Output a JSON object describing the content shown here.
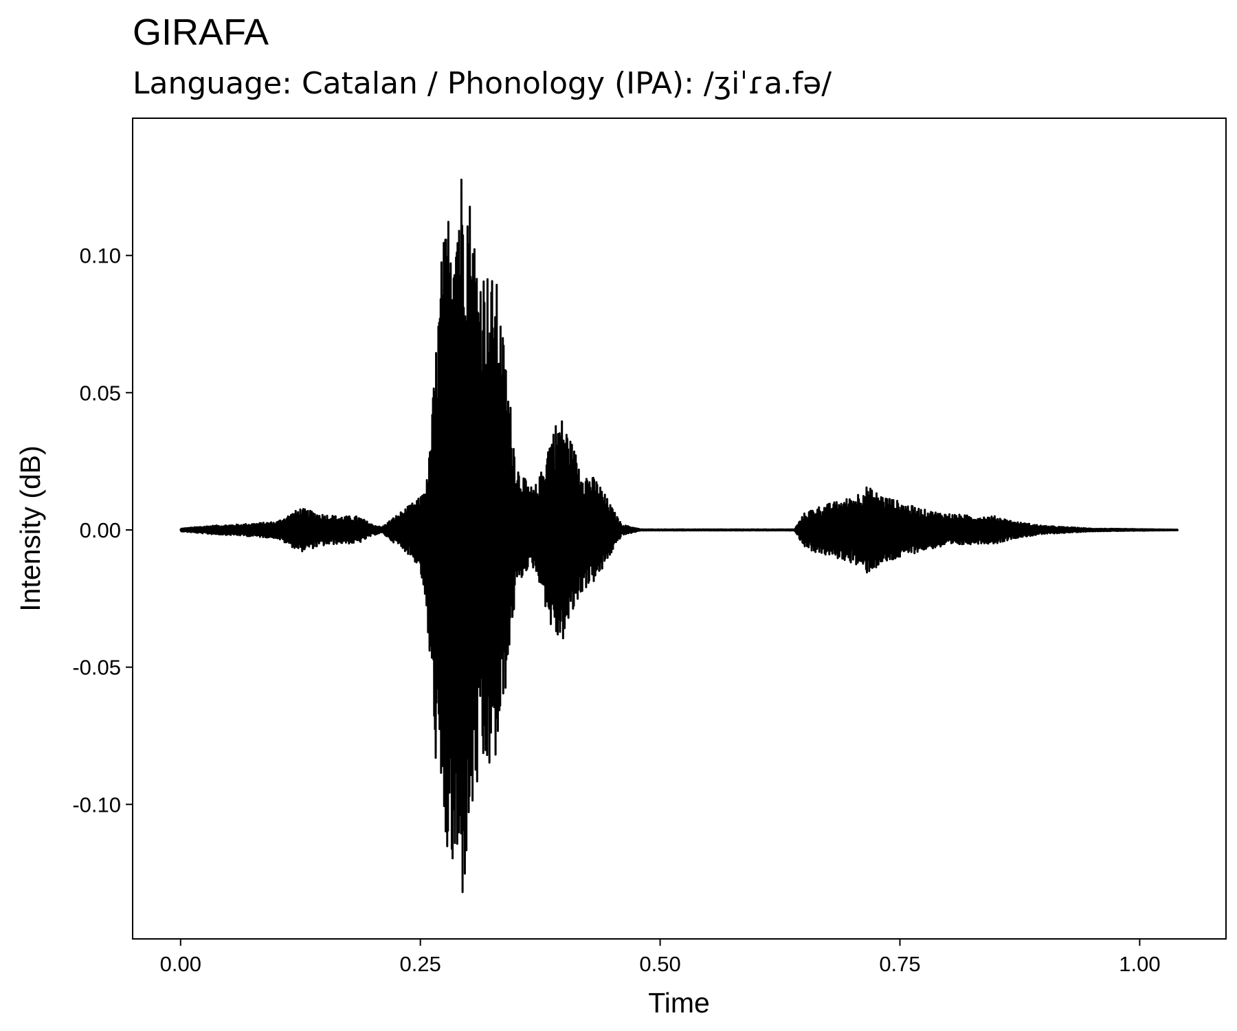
{
  "chart_data": {
    "type": "line",
    "title": "GIRAFA",
    "subtitle": "Language: Catalan / Phonology (IPA): /ʒiˈɾa.fə/",
    "xlabel": "Time",
    "ylabel": "Intensity (dB)",
    "xlim": [
      -0.05,
      1.09
    ],
    "ylim": [
      -0.149,
      0.15
    ],
    "x_ticks": [
      0.0,
      0.25,
      0.5,
      0.75,
      1.0
    ],
    "x_tick_labels": [
      "0.00",
      "0.25",
      "0.50",
      "0.75",
      "1.00"
    ],
    "y_ticks": [
      0.1,
      0.05,
      0.0,
      -0.05,
      -0.1
    ],
    "y_tick_labels": [
      "0.10",
      "0.05",
      "0.00",
      "-0.05",
      "-0.10"
    ],
    "grid": false,
    "legend": "none",
    "series": [
      {
        "color": "#000000",
        "envelope": {
          "t": [
            0.0,
            0.03,
            0.06,
            0.1,
            0.115,
            0.125,
            0.145,
            0.165,
            0.185,
            0.2,
            0.21,
            0.22,
            0.235,
            0.25,
            0.258,
            0.265,
            0.272,
            0.28,
            0.29,
            0.295,
            0.3,
            0.31,
            0.32,
            0.33,
            0.34,
            0.35,
            0.36,
            0.368,
            0.375,
            0.385,
            0.395,
            0.4,
            0.41,
            0.42,
            0.435,
            0.45,
            0.46,
            0.48,
            0.64,
            0.65,
            0.66,
            0.68,
            0.7,
            0.715,
            0.73,
            0.745,
            0.76,
            0.78,
            0.8,
            0.83,
            0.85,
            0.87,
            0.9,
            0.95,
            1.0,
            1.04
          ],
          "upper": [
            0.0005,
            0.0015,
            0.002,
            0.003,
            0.006,
            0.008,
            0.006,
            0.005,
            0.005,
            0.002,
            0.001,
            0.004,
            0.008,
            0.012,
            0.02,
            0.06,
            0.1,
            0.12,
            0.133,
            0.136,
            0.128,
            0.1,
            0.095,
            0.09,
            0.06,
            0.025,
            0.018,
            0.015,
            0.02,
            0.035,
            0.042,
            0.04,
            0.03,
            0.022,
            0.018,
            0.008,
            0.002,
            0.0002,
            0.0002,
            0.006,
            0.008,
            0.01,
            0.012,
            0.016,
            0.013,
            0.011,
            0.009,
            0.007,
            0.006,
            0.005,
            0.005,
            0.003,
            0.0015,
            0.0005,
            0.0003,
            0.0001
          ],
          "lower": [
            -0.0005,
            -0.0015,
            -0.002,
            -0.003,
            -0.006,
            -0.008,
            -0.006,
            -0.005,
            -0.005,
            -0.002,
            -0.001,
            -0.004,
            -0.008,
            -0.014,
            -0.04,
            -0.08,
            -0.11,
            -0.125,
            -0.135,
            -0.136,
            -0.115,
            -0.095,
            -0.09,
            -0.085,
            -0.055,
            -0.022,
            -0.015,
            -0.014,
            -0.02,
            -0.035,
            -0.042,
            -0.04,
            -0.03,
            -0.022,
            -0.018,
            -0.008,
            -0.002,
            -0.0002,
            -0.0002,
            -0.006,
            -0.008,
            -0.01,
            -0.012,
            -0.016,
            -0.013,
            -0.011,
            -0.009,
            -0.007,
            -0.006,
            -0.005,
            -0.005,
            -0.003,
            -0.0015,
            -0.0005,
            -0.0003,
            -0.0001
          ]
        }
      }
    ]
  }
}
